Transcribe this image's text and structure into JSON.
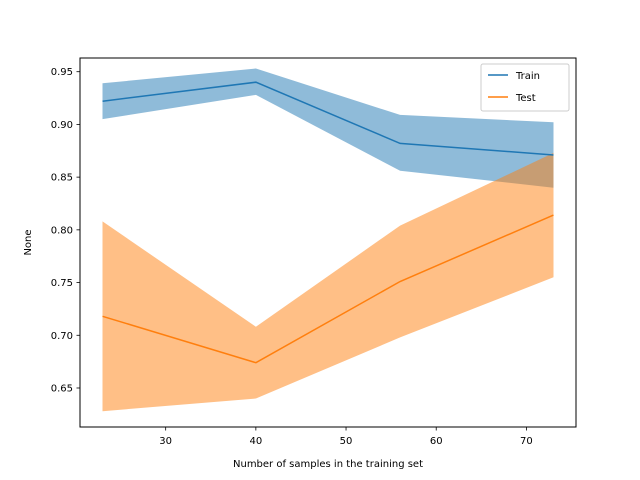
{
  "chart_data": {
    "type": "line",
    "xlabel": "Number of samples in the training set",
    "ylabel": "None",
    "xlim": [
      20.5,
      75.5
    ],
    "ylim": [
      0.613,
      0.963
    ],
    "x_ticks": [
      30,
      40,
      50,
      60,
      70
    ],
    "y_ticks": [
      0.65,
      0.7,
      0.75,
      0.8,
      0.85,
      0.9,
      0.95
    ],
    "x": [
      23,
      40,
      56,
      73
    ],
    "grid": false,
    "legend_position": "top-right",
    "series": [
      {
        "name": "Train",
        "color": "#1f77b4",
        "band_color": "#1f77b4",
        "values": [
          0.922,
          0.94,
          0.882,
          0.871
        ],
        "lower": [
          0.905,
          0.928,
          0.856,
          0.84
        ],
        "upper": [
          0.939,
          0.953,
          0.909,
          0.902
        ]
      },
      {
        "name": "Test",
        "color": "#ff7f0e",
        "band_color": "#ff7f0e",
        "values": [
          0.718,
          0.674,
          0.751,
          0.814
        ],
        "lower": [
          0.628,
          0.64,
          0.698,
          0.755
        ],
        "upper": [
          0.808,
          0.708,
          0.804,
          0.873
        ]
      }
    ]
  }
}
